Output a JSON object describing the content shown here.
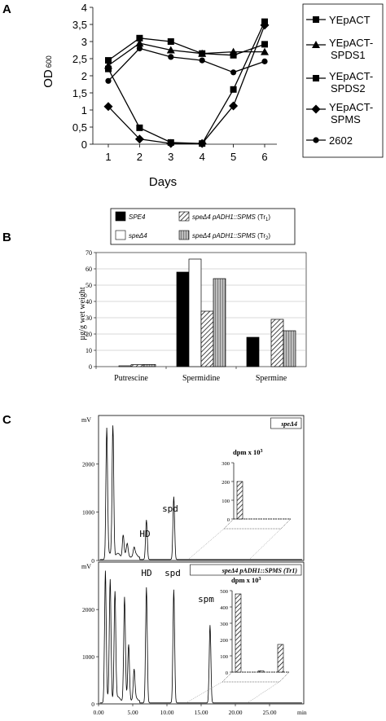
{
  "panels": [
    {
      "letter": "A",
      "chart_data": {
        "type": "line",
        "title": "",
        "xlabel": "Days",
        "ylabel": "OD 600",
        "ylabel_main": "OD",
        "ylabel_sub": "600",
        "x": [
          1,
          2,
          3,
          4,
          5,
          6
        ],
        "xlim": [
          1,
          6
        ],
        "ylim": [
          0,
          4
        ],
        "yticks": [
          "0",
          "0,5",
          "1",
          "1,5",
          "2",
          "2,5",
          "3",
          "3,5",
          "4"
        ],
        "xticks": [
          "1",
          "2",
          "3",
          "4",
          "5",
          "6"
        ],
        "grid": false,
        "legend": "right",
        "series": [
          {
            "name": "YEpACT",
            "marker": "square",
            "values": [
              2.45,
              3.1,
              3.0,
              2.65,
              2.6,
              2.92
            ]
          },
          {
            "name": "YEpACT-SPDS1",
            "marker": "triangle",
            "values": [
              2.3,
              2.95,
              2.75,
              2.65,
              2.7,
              2.7
            ]
          },
          {
            "name": "YEpACT-SPDS2",
            "marker": "square",
            "values": [
              2.2,
              0.48,
              0.05,
              0.02,
              1.6,
              3.58
            ]
          },
          {
            "name": "YEpACT-SPMS",
            "marker": "diamond",
            "values": [
              1.1,
              0.15,
              0.02,
              0.02,
              1.12,
              3.48
            ]
          },
          {
            "name": "2602",
            "marker": "circle",
            "values": [
              1.85,
              2.8,
              2.55,
              2.45,
              2.1,
              2.42
            ]
          }
        ]
      }
    },
    {
      "letter": "B",
      "chart_data": {
        "type": "bar",
        "title": "",
        "xlabel": "",
        "ylabel": "µg/g wet weight",
        "categories": [
          "Putrescine",
          "Spermidine",
          "Spermine"
        ],
        "ylim": [
          0,
          70
        ],
        "yticks": [
          "0",
          "10",
          "20",
          "30",
          "40",
          "50",
          "60",
          "70"
        ],
        "grid": true,
        "legend": "top",
        "series": [
          {
            "name": "SPE4",
            "fill": "solid",
            "values": [
              0,
              58,
              18
            ]
          },
          {
            "name": "speΔ4",
            "fill": "empty",
            "values": [
              0.5,
              66,
              0
            ]
          },
          {
            "name": "speΔ4 pADH1::SPMS (Tr1)",
            "name_main": "speΔ4 pADH1::SPMS",
            "name_suffix": "(Tr",
            "name_sub": "1",
            "fill": "hatch",
            "values": [
              1.2,
              34,
              29
            ]
          },
          {
            "name": "speΔ4 pADH1::SPMS (Tr2)",
            "name_main": "speΔ4 pADH1::SPMS",
            "name_suffix": "(Tr",
            "name_sub": "2",
            "fill": "stripe",
            "values": [
              1.3,
              54,
              22
            ]
          }
        ]
      }
    },
    {
      "letter": "C",
      "xticks": [
        "0.00",
        "5.00",
        "10.00",
        "15.00",
        "20.00",
        "25.00"
      ],
      "x_unit": "min",
      "y_unit": "mV",
      "yticks": [
        "0",
        "1000",
        "2000"
      ],
      "chart_data": [
        {
          "type": "line",
          "title": "speΔ4",
          "xlabel": "min",
          "ylabel": "mV",
          "xlim": [
            0,
            30
          ],
          "ylim": [
            0,
            2900
          ],
          "peaks": [
            {
              "t": 1.2,
              "h": 2650
            },
            {
              "t": 2.1,
              "h": 2720
            },
            {
              "t": 3.6,
              "h": 450
            },
            {
              "t": 4.2,
              "h": 210
            },
            {
              "t": 5.2,
              "h": 140
            },
            {
              "t": 7.0,
              "h": 820
            },
            {
              "t": 11.0,
              "h": 1300
            }
          ],
          "annotations": [
            "HD",
            "spd"
          ],
          "inset": {
            "type": "bar",
            "title": "dpm x 10",
            "title_sup": "3",
            "yticks": [
              "0",
              "100",
              "200",
              "300"
            ],
            "ylim": [
              0,
              300
            ],
            "values": [
              200
            ]
          }
        },
        {
          "type": "line",
          "title": "speΔ4 pADH1::SPMS (Tr1)",
          "xlabel": "min",
          "ylabel": "mV",
          "xlim": [
            0,
            30
          ],
          "ylim": [
            0,
            2900
          ],
          "peaks": [
            {
              "t": 1.0,
              "h": 2750
            },
            {
              "t": 1.7,
              "h": 2500
            },
            {
              "t": 2.4,
              "h": 2300
            },
            {
              "t": 3.8,
              "h": 2150
            },
            {
              "t": 4.4,
              "h": 1150
            },
            {
              "t": 5.2,
              "h": 600
            },
            {
              "t": 7.0,
              "h": 2450
            },
            {
              "t": 11.0,
              "h": 2400
            },
            {
              "t": 16.3,
              "h": 1650
            }
          ],
          "annotations": [
            "HD",
            "spd",
            "spm"
          ],
          "inset": {
            "type": "bar",
            "title": "dpm x 10",
            "title_sup": "3",
            "yticks": [
              "0",
              "100",
              "200",
              "300",
              "400",
              "500"
            ],
            "ylim": [
              0,
              500
            ],
            "values": [
              480,
              8,
              170
            ]
          }
        }
      ]
    }
  ]
}
